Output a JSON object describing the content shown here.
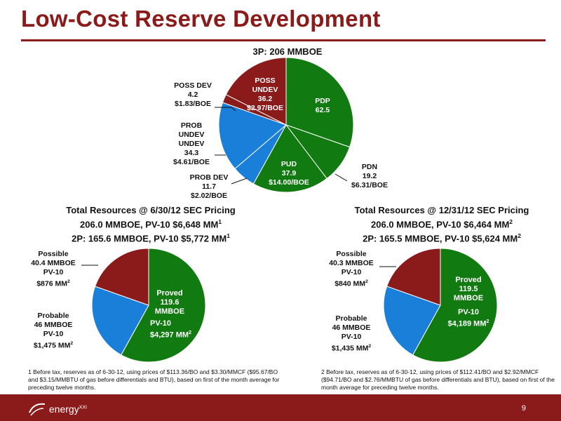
{
  "slide": {
    "title": "Low-Cost Reserve Development",
    "page_number": "9",
    "logo_text": "energy",
    "logo_suffix": "XXI"
  },
  "colors": {
    "green": "#117a11",
    "blue": "#1a7fd8",
    "red": "#8b1a1a",
    "title": "#8b1a1a"
  },
  "chart_data": [
    {
      "type": "pie",
      "title": "3P: 206 MMBOE",
      "slices": [
        {
          "label": "PDP",
          "value": 62.5,
          "cost": "",
          "color": "#117a11"
        },
        {
          "label": "PDN",
          "value": 19.2,
          "cost": "$6.31/BOE",
          "color": "#117a11"
        },
        {
          "label": "PUD",
          "value": 37.9,
          "cost": "$14.00/BOE",
          "color": "#117a11"
        },
        {
          "label": "PROB DEV",
          "value": 11.7,
          "cost": "$2.02/BOE",
          "color": "#1a7fd8"
        },
        {
          "label": "PROB UNDEV",
          "value": 34.3,
          "cost": "$4.61/BOE",
          "color": "#1a7fd8"
        },
        {
          "label": "POSS DEV",
          "value": 4.2,
          "cost": "$1.83/BOE",
          "color": "#8b1a1a"
        },
        {
          "label": "POSS UNDEV",
          "value": 36.2,
          "cost": "$2.97/BOE",
          "color": "#8b1a1a"
        }
      ]
    },
    {
      "type": "pie",
      "title_lines": [
        "Total Resources @ 6/30/12 SEC Pricing",
        "206.0 MMBOE, PV-10 $6,648 MM",
        "2P: 165.6 MMBOE, PV-10 $5,772 MM"
      ],
      "footnote_mark": "1",
      "slices": [
        {
          "label": "Proved",
          "value": 119.6,
          "unit": "MMBOE",
          "pv": "PV-10",
          "pv_value": "$4,297 MM",
          "color": "#117a11"
        },
        {
          "label": "Probable",
          "value": 46.0,
          "unit": "MMBOE",
          "pv": "PV-10",
          "pv_value": "$1,475 MM",
          "color": "#1a7fd8"
        },
        {
          "label": "Possible",
          "value": 40.4,
          "unit": "MMBOE",
          "pv": "PV-10",
          "pv_value": "$876 MM",
          "color": "#8b1a1a"
        }
      ]
    },
    {
      "type": "pie",
      "title_lines": [
        "Total Resources @  12/31/12 SEC Pricing",
        "206.0 MMBOE, PV-10 $6,464 MM",
        "2P: 165.5 MMBOE, PV-10 $5,624 MM"
      ],
      "footnote_mark": "2",
      "slices": [
        {
          "label": "Proved",
          "value": 119.5,
          "unit": "MMBOE",
          "pv": "PV-10",
          "pv_value": "$4,189 MM",
          "color": "#117a11"
        },
        {
          "label": "Probable",
          "value": 46.0,
          "unit": "MMBOE",
          "pv": "PV-10",
          "pv_value": "$1,435 MM",
          "color": "#1a7fd8"
        },
        {
          "label": "Possible",
          "value": 40.3,
          "unit": "MMBOE",
          "pv": "PV-10",
          "pv_value": "$840 MM",
          "color": "#8b1a1a"
        }
      ]
    }
  ],
  "footnotes": {
    "note1": "1 Before tax, reserves as of 6-30-12, using prices of $113.36/BO and $3.30/MMCF ($95.67/BO and $3.15/MMBTU of gas before differentials and BTU), based on first of the month average for preceding twelve months.",
    "note2": "2 Before tax, reserves as of 6-30-12, using prices of $112.41/BO and $2.92/MMCF ($94.71/BO and $2.76/MMBTU of gas before differentials and BTU), based on first of the month average for preceding twelve months."
  }
}
